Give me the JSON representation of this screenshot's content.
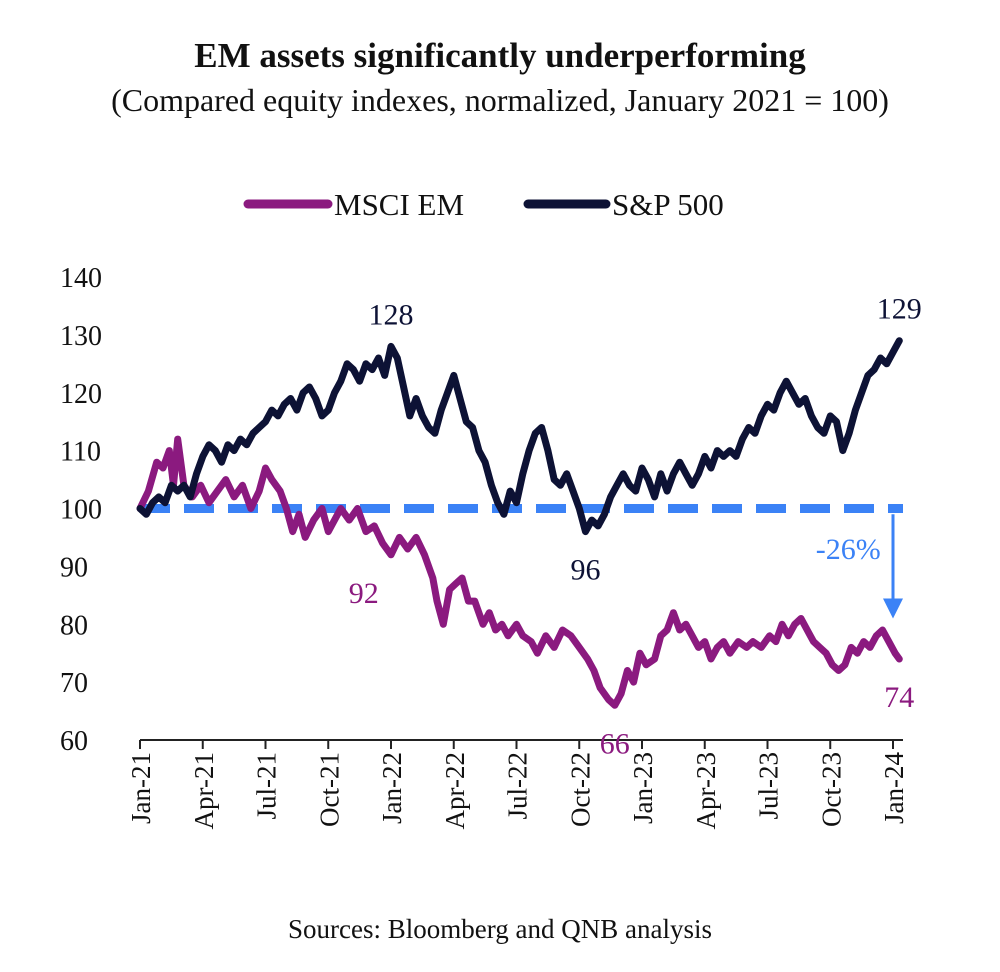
{
  "title": "EM assets significantly underperforming",
  "subtitle": "(Compared equity indexes, normalized, January 2021 = 100)",
  "source": "Sources: Bloomberg and QNB analysis",
  "chart_data": {
    "type": "line",
    "ylim": [
      60,
      140
    ],
    "yticks": [
      60,
      70,
      80,
      90,
      100,
      110,
      120,
      130,
      140
    ],
    "x_tick_labels": [
      "Jan-21",
      "Apr-21",
      "Jul-21",
      "Oct-21",
      "Jan-22",
      "Apr-22",
      "Jul-22",
      "Oct-22",
      "Jan-23",
      "Apr-23",
      "Jul-23",
      "Oct-23",
      "Jan-24"
    ],
    "x_range_months": [
      0,
      36.4
    ],
    "baseline": {
      "value": 100,
      "color": "#3B82F6",
      "style": "dashed"
    },
    "series": [
      {
        "name": "MSCI EM",
        "color": "#8B1A7F",
        "points": [
          [
            0,
            100
          ],
          [
            0.4,
            103
          ],
          [
            0.8,
            108
          ],
          [
            1.1,
            107
          ],
          [
            1.4,
            110
          ],
          [
            1.6,
            104
          ],
          [
            1.8,
            112
          ],
          [
            2.1,
            104
          ],
          [
            2.5,
            102
          ],
          [
            2.9,
            104
          ],
          [
            3.3,
            101
          ],
          [
            3.7,
            103
          ],
          [
            4.1,
            105
          ],
          [
            4.5,
            102
          ],
          [
            4.9,
            104
          ],
          [
            5.3,
            100
          ],
          [
            5.7,
            103
          ],
          [
            6.0,
            107
          ],
          [
            6.3,
            105
          ],
          [
            6.7,
            103
          ],
          [
            7.0,
            100
          ],
          [
            7.3,
            96
          ],
          [
            7.6,
            99
          ],
          [
            7.9,
            95
          ],
          [
            8.3,
            98
          ],
          [
            8.7,
            100
          ],
          [
            9.0,
            96
          ],
          [
            9.3,
            98
          ],
          [
            9.6,
            100
          ],
          [
            10.0,
            98
          ],
          [
            10.4,
            100
          ],
          [
            10.8,
            96
          ],
          [
            11.2,
            97
          ],
          [
            11.6,
            94
          ],
          [
            12.0,
            92
          ],
          [
            12.4,
            95
          ],
          [
            12.8,
            93
          ],
          [
            13.2,
            95
          ],
          [
            13.6,
            92
          ],
          [
            14.0,
            88
          ],
          [
            14.2,
            84
          ],
          [
            14.5,
            80
          ],
          [
            14.8,
            86
          ],
          [
            15.1,
            87
          ],
          [
            15.4,
            88
          ],
          [
            15.7,
            84
          ],
          [
            16.0,
            84
          ],
          [
            16.4,
            80
          ],
          [
            16.7,
            82
          ],
          [
            17.0,
            79
          ],
          [
            17.3,
            80
          ],
          [
            17.6,
            78
          ],
          [
            18.0,
            80
          ],
          [
            18.3,
            78
          ],
          [
            18.7,
            77
          ],
          [
            19.0,
            75
          ],
          [
            19.4,
            78
          ],
          [
            19.8,
            76
          ],
          [
            20.2,
            79
          ],
          [
            20.6,
            78
          ],
          [
            21.0,
            76
          ],
          [
            21.4,
            74
          ],
          [
            21.7,
            72
          ],
          [
            22.0,
            69
          ],
          [
            22.4,
            67
          ],
          [
            22.7,
            66
          ],
          [
            23.0,
            68
          ],
          [
            23.3,
            72
          ],
          [
            23.6,
            70
          ],
          [
            23.9,
            75
          ],
          [
            24.2,
            73
          ],
          [
            24.6,
            74
          ],
          [
            24.9,
            78
          ],
          [
            25.2,
            79
          ],
          [
            25.5,
            82
          ],
          [
            25.8,
            79
          ],
          [
            26.1,
            80
          ],
          [
            26.4,
            78
          ],
          [
            26.7,
            76
          ],
          [
            27.0,
            77
          ],
          [
            27.3,
            74
          ],
          [
            27.6,
            76
          ],
          [
            27.9,
            77
          ],
          [
            28.2,
            75
          ],
          [
            28.6,
            77
          ],
          [
            29.0,
            76
          ],
          [
            29.3,
            77
          ],
          [
            29.7,
            76
          ],
          [
            30.1,
            78
          ],
          [
            30.4,
            77
          ],
          [
            30.7,
            80
          ],
          [
            31.0,
            78
          ],
          [
            31.3,
            80
          ],
          [
            31.6,
            81
          ],
          [
            31.9,
            79
          ],
          [
            32.2,
            77
          ],
          [
            32.5,
            76
          ],
          [
            32.8,
            75
          ],
          [
            33.1,
            73
          ],
          [
            33.4,
            72
          ],
          [
            33.7,
            73
          ],
          [
            34.0,
            76
          ],
          [
            34.3,
            75
          ],
          [
            34.6,
            77
          ],
          [
            34.9,
            76
          ],
          [
            35.2,
            78
          ],
          [
            35.5,
            79
          ],
          [
            35.8,
            77
          ],
          [
            36.1,
            75
          ],
          [
            36.3,
            74
          ]
        ]
      },
      {
        "name": "S&P 500",
        "color": "#0D1235",
        "points": [
          [
            0,
            100
          ],
          [
            0.3,
            99
          ],
          [
            0.6,
            101
          ],
          [
            0.9,
            102
          ],
          [
            1.2,
            101
          ],
          [
            1.5,
            104
          ],
          [
            1.8,
            103
          ],
          [
            2.1,
            104
          ],
          [
            2.4,
            102
          ],
          [
            2.7,
            106
          ],
          [
            3.0,
            109
          ],
          [
            3.3,
            111
          ],
          [
            3.6,
            110
          ],
          [
            3.9,
            108
          ],
          [
            4.2,
            111
          ],
          [
            4.5,
            110
          ],
          [
            4.8,
            112
          ],
          [
            5.1,
            111
          ],
          [
            5.4,
            113
          ],
          [
            5.7,
            114
          ],
          [
            6.0,
            115
          ],
          [
            6.3,
            117
          ],
          [
            6.6,
            116
          ],
          [
            6.9,
            118
          ],
          [
            7.2,
            119
          ],
          [
            7.5,
            117
          ],
          [
            7.8,
            120
          ],
          [
            8.1,
            121
          ],
          [
            8.4,
            119
          ],
          [
            8.7,
            116
          ],
          [
            9.0,
            117
          ],
          [
            9.3,
            120
          ],
          [
            9.6,
            122
          ],
          [
            9.9,
            125
          ],
          [
            10.2,
            124
          ],
          [
            10.5,
            122
          ],
          [
            10.8,
            125
          ],
          [
            11.1,
            124
          ],
          [
            11.4,
            126
          ],
          [
            11.7,
            123
          ],
          [
            12.0,
            128
          ],
          [
            12.3,
            126
          ],
          [
            12.6,
            121
          ],
          [
            12.9,
            116
          ],
          [
            13.2,
            119
          ],
          [
            13.5,
            116
          ],
          [
            13.8,
            114
          ],
          [
            14.1,
            113
          ],
          [
            14.4,
            117
          ],
          [
            14.7,
            120
          ],
          [
            15.0,
            123
          ],
          [
            15.3,
            119
          ],
          [
            15.6,
            115
          ],
          [
            15.9,
            114
          ],
          [
            16.2,
            110
          ],
          [
            16.5,
            108
          ],
          [
            16.8,
            104
          ],
          [
            17.1,
            101
          ],
          [
            17.4,
            99
          ],
          [
            17.7,
            103
          ],
          [
            18.0,
            101
          ],
          [
            18.3,
            106
          ],
          [
            18.6,
            110
          ],
          [
            18.9,
            113
          ],
          [
            19.2,
            114
          ],
          [
            19.5,
            110
          ],
          [
            19.8,
            105
          ],
          [
            20.1,
            104
          ],
          [
            20.4,
            106
          ],
          [
            20.7,
            103
          ],
          [
            21.0,
            100
          ],
          [
            21.3,
            96
          ],
          [
            21.6,
            98
          ],
          [
            21.9,
            97
          ],
          [
            22.2,
            99
          ],
          [
            22.5,
            102
          ],
          [
            22.8,
            104
          ],
          [
            23.1,
            106
          ],
          [
            23.4,
            104
          ],
          [
            23.7,
            103
          ],
          [
            24.0,
            107
          ],
          [
            24.3,
            105
          ],
          [
            24.6,
            102
          ],
          [
            24.9,
            106
          ],
          [
            25.2,
            103
          ],
          [
            25.5,
            106
          ],
          [
            25.8,
            108
          ],
          [
            26.1,
            106
          ],
          [
            26.4,
            104
          ],
          [
            26.7,
            106
          ],
          [
            27.0,
            109
          ],
          [
            27.3,
            107
          ],
          [
            27.6,
            110
          ],
          [
            27.9,
            109
          ],
          [
            28.2,
            110
          ],
          [
            28.5,
            109
          ],
          [
            28.8,
            112
          ],
          [
            29.1,
            114
          ],
          [
            29.4,
            113
          ],
          [
            29.7,
            116
          ],
          [
            30.0,
            118
          ],
          [
            30.3,
            117
          ],
          [
            30.6,
            120
          ],
          [
            30.9,
            122
          ],
          [
            31.2,
            120
          ],
          [
            31.5,
            118
          ],
          [
            31.8,
            119
          ],
          [
            32.1,
            116
          ],
          [
            32.4,
            114
          ],
          [
            32.7,
            113
          ],
          [
            33.0,
            116
          ],
          [
            33.3,
            115
          ],
          [
            33.6,
            110
          ],
          [
            33.9,
            113
          ],
          [
            34.2,
            117
          ],
          [
            34.5,
            120
          ],
          [
            34.8,
            123
          ],
          [
            35.1,
            124
          ],
          [
            35.4,
            126
          ],
          [
            35.7,
            125
          ],
          [
            36.0,
            127
          ],
          [
            36.3,
            129
          ]
        ]
      }
    ],
    "annotations": [
      {
        "text": "128",
        "x": 12.0,
        "y": 128,
        "color": "#0D1235",
        "position": "above"
      },
      {
        "text": "129",
        "x": 36.3,
        "y": 129,
        "color": "#0D1235",
        "position": "above"
      },
      {
        "text": "96",
        "x": 21.3,
        "y": 96,
        "color": "#0D1235",
        "position": "below"
      },
      {
        "text": "92",
        "x": 10.7,
        "y": 92,
        "color": "#8B1A7F",
        "position": "below"
      },
      {
        "text": "66",
        "x": 22.7,
        "y": 66,
        "color": "#8B1A7F",
        "position": "below"
      },
      {
        "text": "74",
        "x": 36.3,
        "y": 74,
        "color": "#8B1A7F",
        "position": "below"
      },
      {
        "text": "-26%",
        "x": 33.5,
        "y": 93,
        "color": "#3B82F6",
        "position": "left"
      }
    ],
    "arrow": {
      "x": 36.0,
      "from": 99,
      "to": 81,
      "color": "#3B82F6"
    },
    "legend": {
      "placement": "top",
      "items": [
        "MSCI EM",
        "S&P 500"
      ]
    }
  }
}
